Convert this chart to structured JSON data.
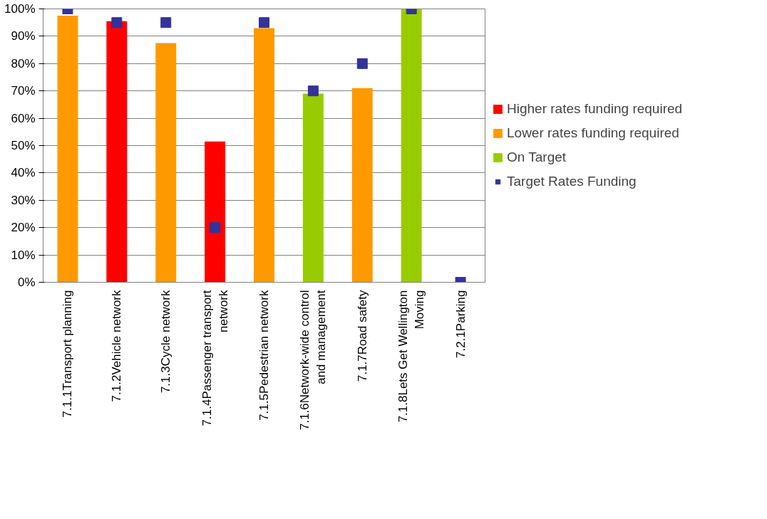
{
  "chart_data": {
    "type": "bar",
    "categories": [
      "7.1.1Transport planning",
      "7.1.2Vehicle network",
      "7.1.3Cycle network",
      "7.1.4Passenger transport network",
      "7.1.5Pedestrian network",
      "7.1.6Network-wide control and management",
      "7.1.7Road safety",
      "7.1.8Lets Get Wellington Moving",
      "7.2.1Parking"
    ],
    "series": [
      {
        "name": "Higher rates funding required",
        "color": "#ff0000",
        "values": [
          null,
          95.5,
          null,
          51.5,
          null,
          null,
          null,
          null,
          null
        ]
      },
      {
        "name": "Lower rates funding required",
        "color": "#ff9900",
        "values": [
          97.5,
          null,
          87.5,
          null,
          93,
          null,
          71,
          null,
          null
        ]
      },
      {
        "name": "On Target",
        "color": "#99cc00",
        "values": [
          null,
          null,
          null,
          null,
          null,
          69,
          null,
          100,
          null
        ]
      },
      {
        "name": "Target Rates Funding",
        "type": "scatter",
        "marker": "square",
        "color": "#333399",
        "values": [
          100,
          95,
          95,
          20,
          95,
          70,
          80,
          100,
          0
        ]
      }
    ],
    "ylim": [
      0,
      100
    ],
    "yticks": [
      {
        "value": 0,
        "label": "0%"
      },
      {
        "value": 10,
        "label": "10%"
      },
      {
        "value": 20,
        "label": "20%"
      },
      {
        "value": 30,
        "label": "30%"
      },
      {
        "value": 40,
        "label": "40%"
      },
      {
        "value": 50,
        "label": "50%"
      },
      {
        "value": 60,
        "label": "60%"
      },
      {
        "value": 70,
        "label": "70%"
      },
      {
        "value": 80,
        "label": "80%"
      },
      {
        "value": 90,
        "label": "90%"
      },
      {
        "value": 100,
        "label": "100%"
      }
    ],
    "grid": "y",
    "legend": "right"
  }
}
